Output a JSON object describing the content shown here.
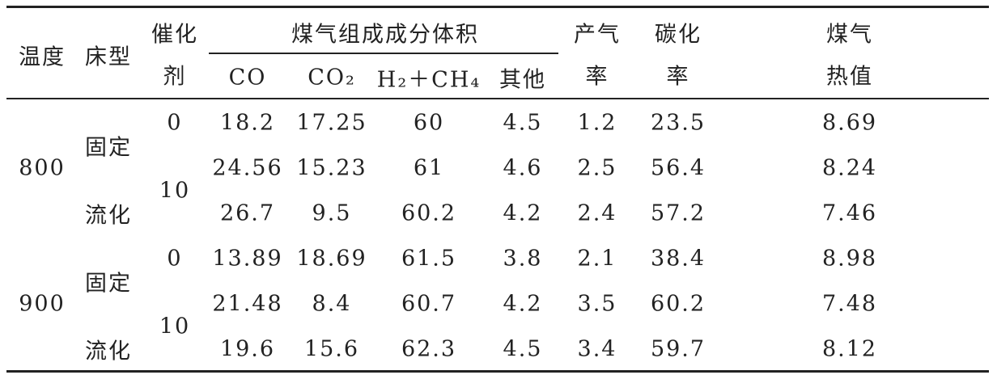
{
  "header": {
    "temperature": "温度",
    "bed_type": "床型",
    "catalyst": [
      "催化",
      "剂"
    ],
    "gas_composition": "煤气组成成分体积",
    "components": [
      "CO",
      "CO₂",
      "H₂＋CH₄",
      "其他"
    ],
    "gas_yield": [
      "产气",
      "率"
    ],
    "carbon_conversion": [
      "碳化",
      "率"
    ],
    "heating_value": [
      "煤气",
      "热值"
    ]
  },
  "groups": [
    {
      "temperature": "800",
      "bed_types": [
        "固定",
        "流化"
      ],
      "catalysts": [
        "0",
        "10"
      ],
      "rows": [
        [
          "18.2",
          "17.25",
          "60",
          "4.5",
          "1.2",
          "23.5",
          "8.69"
        ],
        [
          "24.56",
          "15.23",
          "61",
          "4.6",
          "2.5",
          "56.4",
          "8.24"
        ],
        [
          "26.7",
          "9.5",
          "60.2",
          "4.2",
          "2.4",
          "57.2",
          "7.46"
        ]
      ]
    },
    {
      "temperature": "900",
      "bed_types": [
        "固定",
        "流化"
      ],
      "catalysts": [
        "0",
        "10"
      ],
      "rows": [
        [
          "13.89",
          "18.69",
          "61.5",
          "3.8",
          "2.1",
          "38.4",
          "8.98"
        ],
        [
          "21.48",
          "8.4",
          "60.7",
          "4.2",
          "3.5",
          "60.2",
          "7.48"
        ],
        [
          "19.6",
          "15.6",
          "62.3",
          "4.5",
          "3.4",
          "59.7",
          "8.12"
        ]
      ]
    }
  ]
}
